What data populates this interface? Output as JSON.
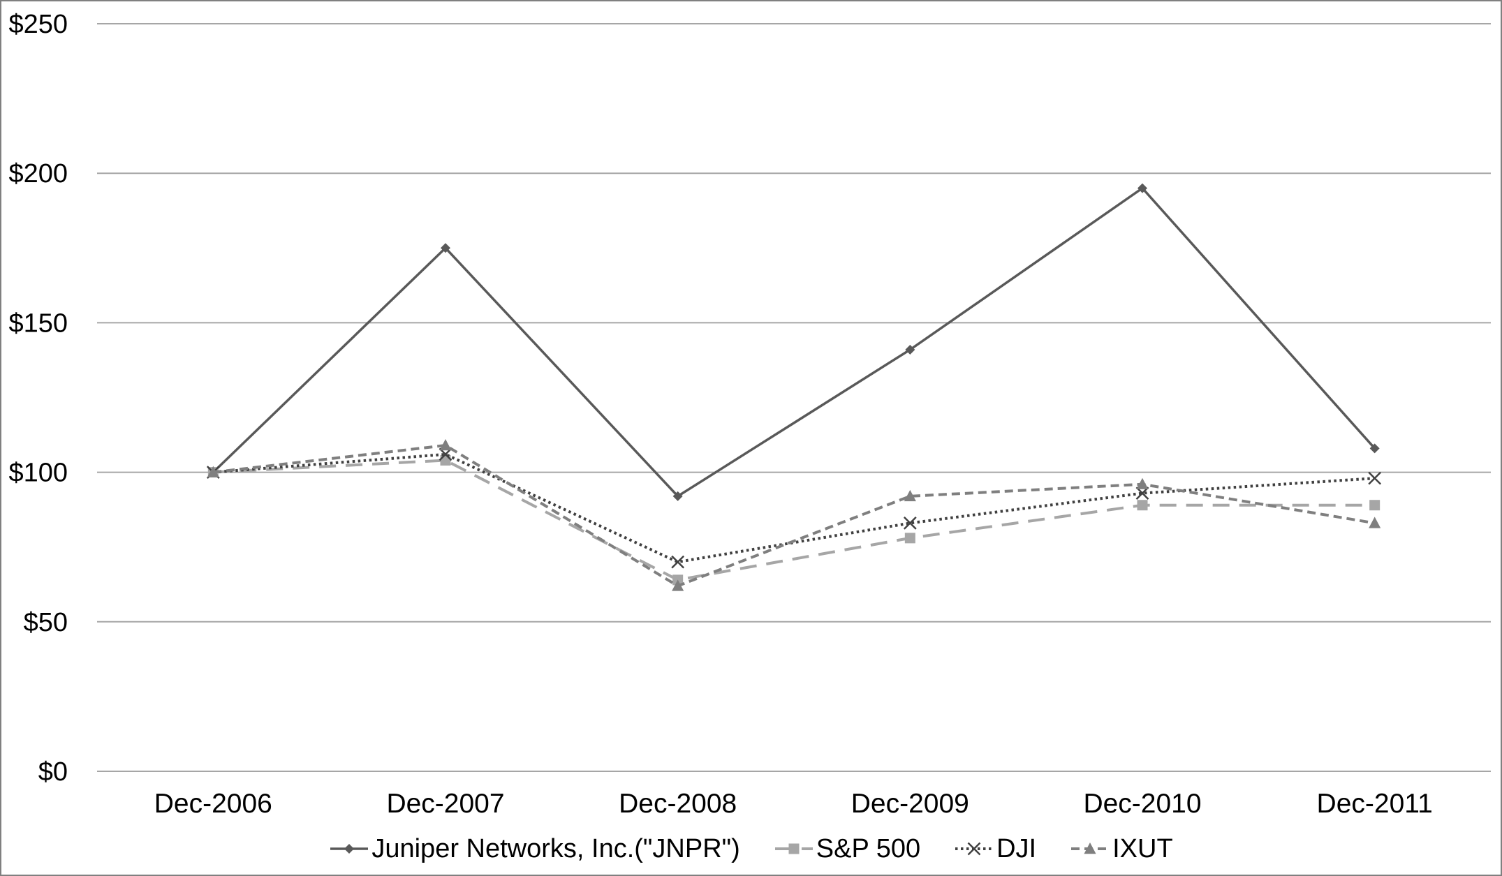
{
  "chart_data": {
    "type": "line",
    "title": "",
    "x_axis": {
      "categories": [
        "Dec-2006",
        "Dec-2007",
        "Dec-2008",
        "Dec-2009",
        "Dec-2010",
        "Dec-2011"
      ]
    },
    "y_axis": {
      "min": 0,
      "max": 250,
      "tick_values": [
        0,
        50,
        100,
        150,
        200,
        250
      ],
      "tick_labels": [
        "$0",
        "$50",
        "$100",
        "$150",
        "$200",
        "$250"
      ]
    },
    "grid": true,
    "legend_position": "bottom",
    "series": [
      {
        "name": "Juniper Networks, Inc.(\"JNPR\")",
        "slug": "jnpr",
        "values": [
          100,
          175,
          92,
          141,
          195,
          108
        ],
        "color": "#595959",
        "marker": "diamond",
        "dash": "solid"
      },
      {
        "name": "S&P 500",
        "slug": "sp500",
        "values": [
          100,
          104,
          64,
          78,
          89,
          89
        ],
        "color": "#A6A6A6",
        "marker": "square",
        "dash": "long-dash"
      },
      {
        "name": "DJI",
        "slug": "dji",
        "values": [
          100,
          106,
          70,
          83,
          93,
          98
        ],
        "color": "#404040",
        "marker": "x",
        "dash": "dot"
      },
      {
        "name": "IXUT",
        "slug": "ixut",
        "values": [
          100,
          109,
          62,
          92,
          96,
          83
        ],
        "color": "#7F7F7F",
        "marker": "triangle",
        "dash": "dash"
      }
    ]
  },
  "colors": {
    "background": "#FFFFFF",
    "gridline": "#A6A6A6",
    "axis_text": "#000000",
    "page_border": "#808080"
  }
}
